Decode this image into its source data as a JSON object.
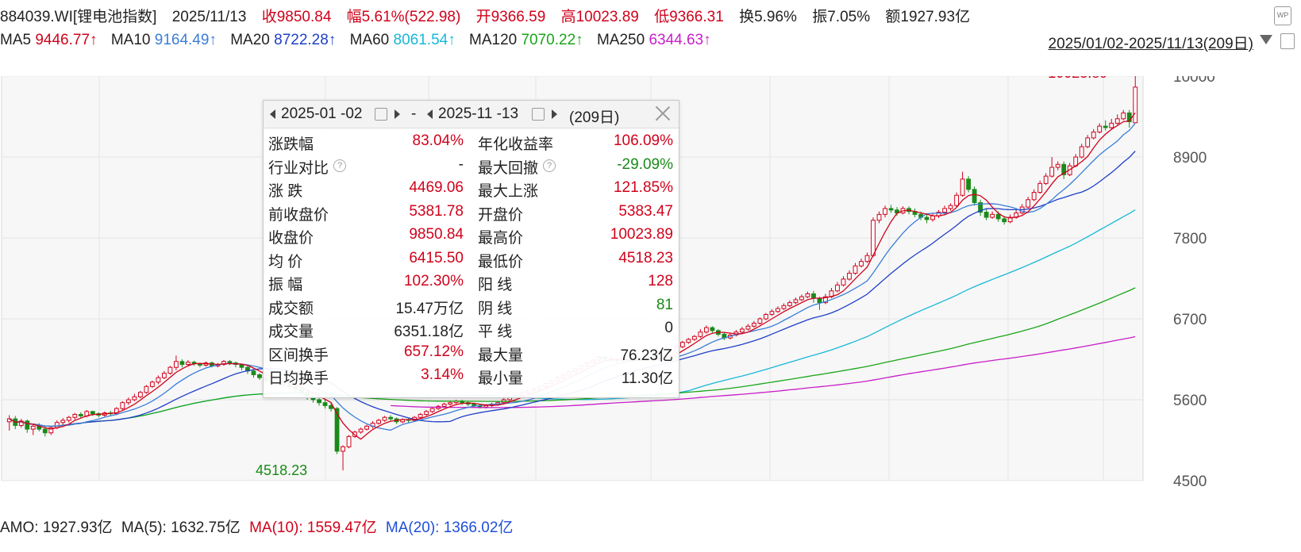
{
  "header": {
    "name": "884039.WI[锂电池指数]",
    "date": "2025/11/13",
    "close": "收9850.84",
    "change": "幅5.61%(522.98)",
    "open": "开9366.59",
    "high": "高10023.89",
    "low": "低9366.31",
    "turnover": "换5.96%",
    "amplitude": "振7.05%",
    "amount": "额1927.93亿"
  },
  "ma_row": [
    {
      "label": "MA5",
      "value": "9446.77↑",
      "color": "#d0021b"
    },
    {
      "label": "MA10",
      "value": "9164.49↑",
      "color": "#3b7dd8"
    },
    {
      "label": "MA20",
      "value": "8722.28↑",
      "color": "#1f3fc8"
    },
    {
      "label": "MA60",
      "value": "8061.54↑",
      "color": "#19b8d8"
    },
    {
      "label": "MA120",
      "value": "7070.22↑",
      "color": "#1aa51a"
    },
    {
      "label": "MA250",
      "value": "6344.63↑",
      "color": "#c81ec8"
    }
  ],
  "range_label": "2025/01/02-2025/11/13(209日)",
  "panel": {
    "start_date": "2025-01 -02",
    "sep": "-",
    "end_date": "2025-11 -13",
    "days": "(209日)",
    "rows": [
      {
        "l1": "涨跌幅",
        "v1": "83.04%",
        "c1": "red",
        "l2": "年化收益率",
        "v2": "106.09%",
        "c2": "red"
      },
      {
        "l1": "行业对比",
        "v1": "-",
        "c1": "",
        "l2": "最大回撤",
        "v2": "-29.09%",
        "c2": "green"
      },
      {
        "l1": "涨  跌",
        "v1": "4469.06",
        "c1": "red",
        "l2": "最大上涨",
        "v2": "121.85%",
        "c2": "red"
      },
      {
        "l1": "前收盘价",
        "v1": "5381.78",
        "c1": "red",
        "l2": "开盘价",
        "v2": "5383.47",
        "c2": "red"
      },
      {
        "l1": "收盘价",
        "v1": "9850.84",
        "c1": "red",
        "l2": "最高价",
        "v2": "10023.89",
        "c2": "red"
      },
      {
        "l1": "均  价",
        "v1": "6415.50",
        "c1": "red",
        "l2": "最低价",
        "v2": "4518.23",
        "c2": "red"
      },
      {
        "l1": "振  幅",
        "v1": "102.30%",
        "c1": "red",
        "l2": "阳  线",
        "v2": "128",
        "c2": "red"
      },
      {
        "l1": "成交额",
        "v1": "15.47万亿",
        "c1": "",
        "l2": "阴  线",
        "v2": "81",
        "c2": "green"
      },
      {
        "l1": "成交量",
        "v1": "6351.18亿",
        "c1": "",
        "l2": "平  线",
        "v2": "0",
        "c2": ""
      },
      {
        "l1": "区间换手",
        "v1": "657.12%",
        "c1": "red",
        "l2": "最大量",
        "v2": "76.23亿",
        "c2": ""
      },
      {
        "l1": "日均换手",
        "v1": "3.14%",
        "c1": "red",
        "l2": "最小量",
        "v2": "11.30亿",
        "c2": ""
      }
    ]
  },
  "volume_row": {
    "amo": "AMO: 1927.93亿",
    "ma5": "MA(5): 1632.75亿",
    "ma10": "MA(10): 1559.47亿",
    "ma20": "MA(20): 1366.02亿"
  },
  "chart_data": {
    "type": "candlestick",
    "y_ticks": [
      "10000",
      "8900",
      "7800",
      "6700",
      "5600",
      "4500"
    ],
    "ylim": [
      4500,
      10000
    ],
    "high_label": "10023.89",
    "low_label": "4518.23",
    "grid": true,
    "candles": [
      [
        5300,
        5340,
        5180,
        5390
      ],
      [
        5340,
        5250,
        5200,
        5380
      ],
      [
        5250,
        5310,
        5220,
        5340
      ],
      [
        5310,
        5200,
        5150,
        5330
      ],
      [
        5200,
        5240,
        5120,
        5260
      ],
      [
        5240,
        5200,
        5170,
        5280
      ],
      [
        5200,
        5150,
        5100,
        5230
      ],
      [
        5150,
        5220,
        5120,
        5240
      ],
      [
        5220,
        5290,
        5200,
        5320
      ],
      [
        5290,
        5320,
        5260,
        5350
      ],
      [
        5320,
        5360,
        5290,
        5380
      ],
      [
        5360,
        5400,
        5330,
        5420
      ],
      [
        5400,
        5380,
        5350,
        5430
      ],
      [
        5380,
        5440,
        5360,
        5460
      ],
      [
        5440,
        5410,
        5380,
        5450
      ],
      [
        5410,
        5390,
        5360,
        5430
      ],
      [
        5390,
        5420,
        5370,
        5440
      ],
      [
        5420,
        5410,
        5380,
        5450
      ],
      [
        5410,
        5480,
        5390,
        5500
      ],
      [
        5480,
        5560,
        5460,
        5580
      ],
      [
        5560,
        5600,
        5530,
        5630
      ],
      [
        5600,
        5640,
        5580,
        5680
      ],
      [
        5640,
        5700,
        5620,
        5720
      ],
      [
        5700,
        5780,
        5680,
        5800
      ],
      [
        5780,
        5840,
        5760,
        5860
      ],
      [
        5840,
        5900,
        5810,
        5930
      ],
      [
        5900,
        5960,
        5880,
        5990
      ],
      [
        5960,
        6040,
        5940,
        6060
      ],
      [
        6040,
        6120,
        6000,
        6200
      ],
      [
        6120,
        6080,
        6040,
        6150
      ],
      [
        6080,
        6110,
        6050,
        6140
      ],
      [
        6110,
        6090,
        6060,
        6130
      ],
      [
        6090,
        6070,
        6040,
        6100
      ],
      [
        6070,
        6100,
        6050,
        6120
      ],
      [
        6100,
        6060,
        6040,
        6120
      ],
      [
        6060,
        6080,
        6040,
        6100
      ],
      [
        6080,
        6120,
        6060,
        6140
      ],
      [
        6120,
        6100,
        6070,
        6140
      ],
      [
        6100,
        6080,
        6040,
        6120
      ],
      [
        6080,
        6040,
        6000,
        6090
      ],
      [
        6040,
        5990,
        5950,
        6060
      ],
      [
        5990,
        5940,
        5900,
        6010
      ],
      [
        5940,
        5900,
        5870,
        5960
      ],
      [
        5900,
        5850,
        5820,
        5920
      ],
      [
        5850,
        5840,
        5800,
        5880
      ],
      [
        5840,
        5820,
        5780,
        5870
      ],
      [
        5820,
        5800,
        5760,
        5840
      ],
      [
        5800,
        5780,
        5740,
        5830
      ],
      [
        5780,
        5740,
        5700,
        5800
      ],
      [
        5740,
        5700,
        5660,
        5760
      ],
      [
        5700,
        5650,
        5600,
        5730
      ],
      [
        5650,
        5600,
        5560,
        5680
      ],
      [
        5600,
        5560,
        5520,
        5630
      ],
      [
        5560,
        5520,
        5480,
        5600
      ],
      [
        5520,
        5480,
        5440,
        5560
      ],
      [
        5480,
        4900,
        4860,
        5500
      ],
      [
        4900,
        4960,
        4640,
        4980
      ],
      [
        4960,
        5100,
        4940,
        5120
      ],
      [
        5100,
        5160,
        5080,
        5180
      ],
      [
        5160,
        5200,
        5140,
        5220
      ],
      [
        5200,
        5240,
        5180,
        5260
      ],
      [
        5240,
        5280,
        5210,
        5310
      ],
      [
        5280,
        5320,
        5260,
        5340
      ],
      [
        5320,
        5360,
        5300,
        5380
      ],
      [
        5360,
        5340,
        5310,
        5390
      ],
      [
        5340,
        5300,
        5270,
        5360
      ],
      [
        5300,
        5330,
        5280,
        5350
      ],
      [
        5330,
        5320,
        5290,
        5350
      ],
      [
        5320,
        5360,
        5300,
        5380
      ],
      [
        5360,
        5400,
        5340,
        5420
      ],
      [
        5400,
        5440,
        5380,
        5460
      ],
      [
        5440,
        5480,
        5420,
        5500
      ],
      [
        5480,
        5510,
        5460,
        5530
      ],
      [
        5510,
        5540,
        5490,
        5560
      ],
      [
        5540,
        5560,
        5520,
        5590
      ],
      [
        5560,
        5580,
        5540,
        5600
      ],
      [
        5580,
        5560,
        5530,
        5600
      ],
      [
        5560,
        5540,
        5510,
        5580
      ],
      [
        5540,
        5520,
        5500,
        5560
      ],
      [
        5520,
        5500,
        5480,
        5540
      ],
      [
        5500,
        5520,
        5480,
        5540
      ],
      [
        5520,
        5540,
        5500,
        5560
      ],
      [
        5540,
        5560,
        5520,
        5580
      ],
      [
        5560,
        5600,
        5540,
        5620
      ],
      [
        5600,
        5640,
        5580,
        5660
      ],
      [
        5640,
        5660,
        5620,
        5680
      ],
      [
        5660,
        5690,
        5640,
        5710
      ],
      [
        5690,
        5720,
        5670,
        5740
      ],
      [
        5720,
        5740,
        5700,
        5770
      ],
      [
        5740,
        5780,
        5720,
        5800
      ],
      [
        5780,
        5820,
        5760,
        5840
      ],
      [
        5820,
        5860,
        5800,
        5880
      ],
      [
        5860,
        5900,
        5840,
        5920
      ],
      [
        5900,
        5940,
        5880,
        5960
      ],
      [
        5940,
        5980,
        5920,
        6000
      ],
      [
        5980,
        6020,
        5960,
        6040
      ],
      [
        6020,
        6060,
        6000,
        6080
      ],
      [
        6060,
        6100,
        6040,
        6120
      ],
      [
        6100,
        6140,
        6080,
        6160
      ],
      [
        6140,
        6180,
        6120,
        6200
      ],
      [
        6180,
        6160,
        6140,
        6210
      ],
      [
        6160,
        6140,
        6120,
        6190
      ],
      [
        6140,
        6130,
        6100,
        6170
      ],
      [
        6130,
        6150,
        6110,
        6170
      ],
      [
        6150,
        6130,
        6110,
        6160
      ],
      [
        6130,
        6140,
        6110,
        6160
      ],
      [
        6140,
        6160,
        6120,
        6180
      ],
      [
        6160,
        6150,
        6130,
        6190
      ],
      [
        6150,
        6140,
        6120,
        6170
      ],
      [
        6140,
        6170,
        6130,
        6190
      ],
      [
        6170,
        6200,
        6150,
        6230
      ],
      [
        6200,
        6250,
        6190,
        6280
      ],
      [
        6250,
        6320,
        6230,
        6340
      ],
      [
        6320,
        6380,
        6300,
        6400
      ],
      [
        6380,
        6420,
        6360,
        6440
      ],
      [
        6420,
        6460,
        6400,
        6480
      ],
      [
        6460,
        6520,
        6440,
        6560
      ],
      [
        6520,
        6580,
        6500,
        6610
      ],
      [
        6580,
        6540,
        6510,
        6600
      ],
      [
        6540,
        6490,
        6460,
        6560
      ],
      [
        6490,
        6440,
        6410,
        6520
      ],
      [
        6440,
        6480,
        6420,
        6500
      ],
      [
        6480,
        6520,
        6460,
        6550
      ],
      [
        6520,
        6560,
        6500,
        6590
      ],
      [
        6560,
        6600,
        6540,
        6630
      ],
      [
        6600,
        6640,
        6580,
        6670
      ],
      [
        6640,
        6700,
        6620,
        6720
      ],
      [
        6700,
        6760,
        6680,
        6780
      ],
      [
        6760,
        6800,
        6740,
        6830
      ],
      [
        6800,
        6840,
        6780,
        6870
      ],
      [
        6840,
        6880,
        6820,
        6910
      ],
      [
        6880,
        6920,
        6860,
        6950
      ],
      [
        6920,
        6960,
        6900,
        6990
      ],
      [
        6960,
        7000,
        6940,
        7030
      ],
      [
        7000,
        7040,
        6980,
        7070
      ],
      [
        7040,
        6980,
        6920,
        7080
      ],
      [
        6980,
        6920,
        6820,
        7000
      ],
      [
        6920,
        7000,
        6900,
        7040
      ],
      [
        7000,
        7080,
        6980,
        7120
      ],
      [
        7080,
        7160,
        7060,
        7200
      ],
      [
        7160,
        7240,
        7140,
        7280
      ],
      [
        7240,
        7320,
        7220,
        7360
      ],
      [
        7320,
        7420,
        7300,
        7460
      ],
      [
        7420,
        7480,
        7400,
        7520
      ],
      [
        7480,
        7560,
        7460,
        7600
      ],
      [
        7560,
        8040,
        7540,
        8080
      ],
      [
        8040,
        8120,
        8000,
        8160
      ],
      [
        8120,
        8200,
        8080,
        8240
      ],
      [
        8200,
        8180,
        8140,
        8250
      ],
      [
        8180,
        8140,
        8100,
        8220
      ],
      [
        8140,
        8200,
        8120,
        8230
      ],
      [
        8200,
        8160,
        8120,
        8230
      ],
      [
        8160,
        8120,
        8080,
        8200
      ],
      [
        8120,
        8080,
        8040,
        8160
      ],
      [
        8080,
        8050,
        8000,
        8120
      ],
      [
        8050,
        8100,
        8020,
        8140
      ],
      [
        8100,
        8150,
        8070,
        8180
      ],
      [
        8150,
        8200,
        8120,
        8240
      ],
      [
        8200,
        8240,
        8170,
        8270
      ],
      [
        8240,
        8380,
        8220,
        8420
      ],
      [
        8380,
        8600,
        8360,
        8700
      ],
      [
        8600,
        8460,
        8420,
        8640
      ],
      [
        8460,
        8280,
        8240,
        8500
      ],
      [
        8280,
        8150,
        8100,
        8320
      ],
      [
        8150,
        8080,
        8040,
        8200
      ],
      [
        8080,
        8120,
        8060,
        8160
      ],
      [
        8120,
        8060,
        8020,
        8160
      ],
      [
        8060,
        8020,
        7980,
        8100
      ],
      [
        8020,
        8080,
        8000,
        8120
      ],
      [
        8080,
        8140,
        8060,
        8180
      ],
      [
        8140,
        8220,
        8120,
        8260
      ],
      [
        8220,
        8320,
        8200,
        8360
      ],
      [
        8320,
        8420,
        8300,
        8460
      ],
      [
        8420,
        8540,
        8400,
        8580
      ],
      [
        8540,
        8640,
        8520,
        8680
      ],
      [
        8640,
        8760,
        8620,
        8900
      ],
      [
        8760,
        8800,
        8720,
        8840
      ],
      [
        8800,
        8660,
        8600,
        8840
      ],
      [
        8660,
        8780,
        8640,
        8820
      ],
      [
        8780,
        8900,
        8760,
        8940
      ],
      [
        8900,
        9040,
        8880,
        9080
      ],
      [
        9040,
        9160,
        9020,
        9200
      ],
      [
        9160,
        9240,
        9140,
        9280
      ],
      [
        9240,
        9320,
        9220,
        9360
      ],
      [
        9320,
        9300,
        9260,
        9400
      ],
      [
        9300,
        9360,
        9280,
        9420
      ],
      [
        9360,
        9420,
        9340,
        9480
      ],
      [
        9420,
        9500,
        9400,
        9540
      ],
      [
        9500,
        9380,
        9300,
        9540
      ],
      [
        9366.59,
        9850.84,
        9366.31,
        10023.89
      ]
    ]
  }
}
